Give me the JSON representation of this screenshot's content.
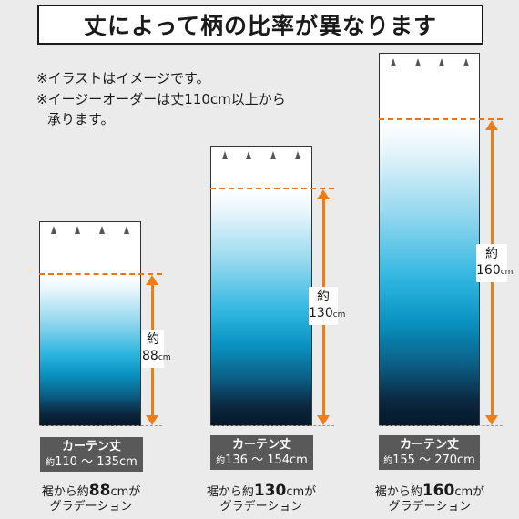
{
  "title": "丈によって柄の比率が異なります",
  "notes": {
    "line1": "※イラストはイメージです。",
    "line2": "※イージーオーダーは丈110cm以上から",
    "line3": "承ります。"
  },
  "curtains": [
    {
      "size_label_prefix": "約",
      "size_value": "88",
      "size_unit": "cm",
      "spec_title": "カーテン丈",
      "spec_prefix": "約",
      "spec_range": "110 〜 135cm",
      "caption_prefix": "裾から約",
      "caption_value": "88",
      "caption_unit": "cmが",
      "caption_line2": "グラデーション"
    },
    {
      "size_label_prefix": "約",
      "size_value": "130",
      "size_unit": "cm",
      "spec_title": "カーテン丈",
      "spec_prefix": "約",
      "spec_range": "136 〜 154cm",
      "caption_prefix": "裾から約",
      "caption_value": "130",
      "caption_unit": "cmが",
      "caption_line2": "グラデーション"
    },
    {
      "size_label_prefix": "約",
      "size_value": "160",
      "size_unit": "cm",
      "spec_title": "カーテン丈",
      "spec_prefix": "約",
      "spec_range": "155 〜 270cm",
      "caption_prefix": "裾から約",
      "caption_value": "160",
      "caption_unit": "cmが",
      "caption_line2": "グラデーション"
    }
  ],
  "colors": {
    "background": "#ebebeb",
    "arrow": "#ee7d16",
    "spec_box": "#595959",
    "gradient_dark": "#061828",
    "gradient_mid": "#2fb6e0"
  }
}
